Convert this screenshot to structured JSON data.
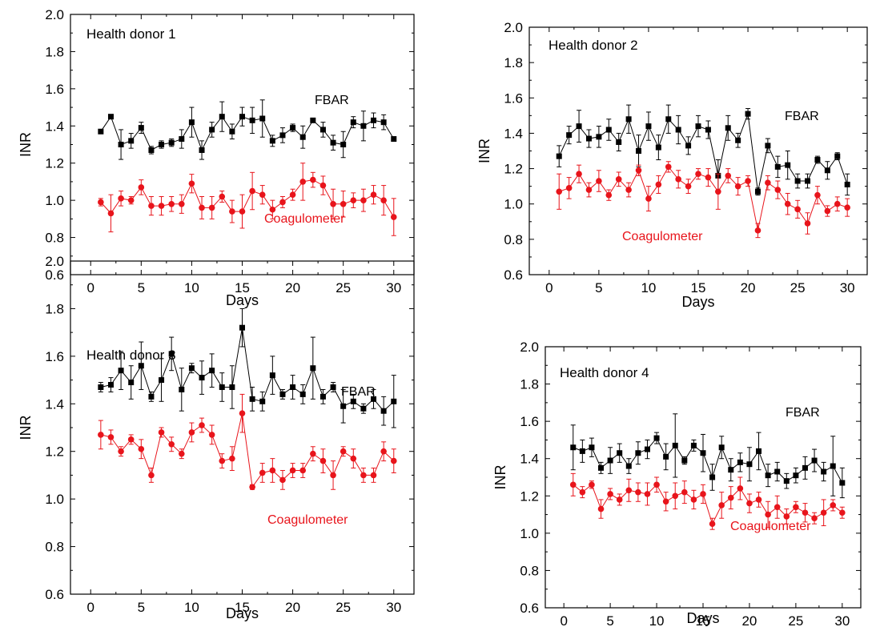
{
  "chart_data": [
    {
      "type": "line",
      "title": "Health donor 1",
      "xlabel": "Days",
      "ylabel": "INR",
      "xlim": [
        -2,
        32
      ],
      "ylim": [
        0.6,
        2.0
      ],
      "xticks": [
        "0",
        "5",
        "10",
        "15",
        "20",
        "25",
        "30"
      ],
      "yticks": [
        "0.6",
        "0.8",
        "1.0",
        "1.2",
        "1.4",
        "1.6",
        "1.8",
        "2.0"
      ],
      "x": [
        1,
        2,
        3,
        4,
        5,
        6,
        7,
        8,
        9,
        10,
        11,
        12,
        13,
        14,
        15,
        16,
        17,
        18,
        19,
        20,
        21,
        22,
        23,
        24,
        25,
        26,
        27,
        28,
        29,
        30
      ],
      "series": [
        {
          "name": "FBAR",
          "color": "#000000",
          "marker": "square",
          "values": [
            1.37,
            1.45,
            1.3,
            1.32,
            1.39,
            1.27,
            1.3,
            1.31,
            1.33,
            1.42,
            1.27,
            1.38,
            1.45,
            1.37,
            1.45,
            1.43,
            1.44,
            1.32,
            1.35,
            1.39,
            1.34,
            1.43,
            1.38,
            1.31,
            1.3,
            1.42,
            1.4,
            1.43,
            1.42,
            1.33
          ],
          "errors": [
            0.01,
            0.01,
            0.08,
            0.04,
            0.03,
            0.02,
            0.02,
            0.02,
            0.05,
            0.08,
            0.05,
            0.04,
            0.08,
            0.04,
            0.05,
            0.07,
            0.1,
            0.03,
            0.04,
            0.02,
            0.06,
            0.01,
            0.04,
            0.04,
            0.07,
            0.03,
            0.08,
            0.04,
            0.04,
            0.01
          ]
        },
        {
          "name": "Coagulometer",
          "color": "#e8141b",
          "marker": "circle",
          "values": [
            0.99,
            0.93,
            1.01,
            1.0,
            1.07,
            0.97,
            0.97,
            0.98,
            0.98,
            1.09,
            0.96,
            0.96,
            1.02,
            0.94,
            0.94,
            1.05,
            1.03,
            0.95,
            0.99,
            1.03,
            1.1,
            1.11,
            1.08,
            0.98,
            0.98,
            1.0,
            1.0,
            1.03,
            1.0,
            0.91
          ],
          "errors": [
            0.02,
            0.1,
            0.04,
            0.02,
            0.04,
            0.05,
            0.05,
            0.04,
            0.05,
            0.05,
            0.06,
            0.06,
            0.03,
            0.06,
            0.09,
            0.1,
            0.05,
            0.05,
            0.03,
            0.03,
            0.1,
            0.04,
            0.05,
            0.08,
            0.07,
            0.04,
            0.06,
            0.05,
            0.08,
            0.1
          ]
        }
      ]
    },
    {
      "type": "line",
      "title": "Health donor 2",
      "xlabel": "Days",
      "ylabel": "INR",
      "xlim": [
        -2,
        32
      ],
      "ylim": [
        0.6,
        2.0
      ],
      "xticks": [
        "0",
        "5",
        "10",
        "15",
        "20",
        "25",
        "30"
      ],
      "yticks": [
        "0.6",
        "0.8",
        "1.0",
        "1.2",
        "1.4",
        "1.6",
        "1.8",
        "2.0"
      ],
      "x": [
        1,
        2,
        3,
        4,
        5,
        6,
        7,
        8,
        9,
        10,
        11,
        12,
        13,
        14,
        15,
        16,
        17,
        18,
        19,
        20,
        21,
        22,
        23,
        24,
        25,
        26,
        27,
        28,
        29,
        30
      ],
      "series": [
        {
          "name": "FBAR",
          "color": "#000000",
          "marker": "square",
          "values": [
            1.27,
            1.39,
            1.44,
            1.37,
            1.38,
            1.42,
            1.35,
            1.48,
            1.3,
            1.44,
            1.32,
            1.48,
            1.42,
            1.33,
            1.44,
            1.42,
            1.16,
            1.43,
            1.36,
            1.51,
            1.07,
            1.33,
            1.21,
            1.22,
            1.13,
            1.13,
            1.25,
            1.19,
            1.27,
            1.11
          ],
          "errors": [
            0.06,
            0.05,
            0.09,
            0.05,
            0.06,
            0.06,
            0.05,
            0.08,
            0.09,
            0.08,
            0.07,
            0.08,
            0.08,
            0.05,
            0.06,
            0.05,
            0.09,
            0.07,
            0.04,
            0.03,
            0.02,
            0.04,
            0.06,
            0.08,
            0.04,
            0.04,
            0.02,
            0.05,
            0.02,
            0.06
          ]
        },
        {
          "name": "Coagulometer",
          "color": "#e8141b",
          "marker": "circle",
          "values": [
            1.07,
            1.09,
            1.17,
            1.08,
            1.13,
            1.05,
            1.14,
            1.08,
            1.19,
            1.03,
            1.11,
            1.21,
            1.14,
            1.1,
            1.17,
            1.15,
            1.07,
            1.16,
            1.1,
            1.13,
            0.85,
            1.12,
            1.08,
            1.0,
            0.97,
            0.89,
            1.05,
            0.96,
            1.0,
            0.98
          ],
          "errors": [
            0.1,
            0.06,
            0.05,
            0.04,
            0.06,
            0.03,
            0.04,
            0.04,
            0.03,
            0.07,
            0.05,
            0.03,
            0.05,
            0.04,
            0.03,
            0.05,
            0.1,
            0.04,
            0.05,
            0.03,
            0.04,
            0.04,
            0.05,
            0.06,
            0.05,
            0.06,
            0.05,
            0.03,
            0.04,
            0.05
          ]
        }
      ]
    },
    {
      "type": "line",
      "title": "Health donor 3",
      "xlabel": "Days",
      "ylabel": "INR",
      "xlim": [
        -2,
        32
      ],
      "ylim": [
        0.6,
        2.0
      ],
      "xticks": [
        "0",
        "5",
        "10",
        "15",
        "20",
        "25",
        "30"
      ],
      "yticks": [
        "0.6",
        "0.8",
        "1.0",
        "1.2",
        "1.4",
        "1.6",
        "1.8",
        "2.0"
      ],
      "x": [
        1,
        2,
        3,
        4,
        5,
        6,
        7,
        8,
        9,
        10,
        11,
        12,
        13,
        14,
        15,
        16,
        17,
        18,
        19,
        20,
        21,
        22,
        23,
        24,
        25,
        26,
        27,
        28,
        29,
        30
      ],
      "series": [
        {
          "name": "FBAR",
          "color": "#000000",
          "marker": "square",
          "values": [
            1.47,
            1.48,
            1.54,
            1.49,
            1.56,
            1.43,
            1.5,
            1.61,
            1.46,
            1.55,
            1.51,
            1.54,
            1.47,
            1.47,
            1.72,
            1.42,
            1.41,
            1.52,
            1.44,
            1.47,
            1.44,
            1.55,
            1.43,
            1.47,
            1.39,
            1.41,
            1.38,
            1.42,
            1.37,
            1.41
          ],
          "errors": [
            0.02,
            0.03,
            0.08,
            0.07,
            0.1,
            0.02,
            0.09,
            0.07,
            0.09,
            0.02,
            0.07,
            0.07,
            0.06,
            0.09,
            0.08,
            0.05,
            0.04,
            0.08,
            0.02,
            0.05,
            0.04,
            0.13,
            0.03,
            0.02,
            0.07,
            0.03,
            0.02,
            0.04,
            0.06,
            0.11
          ]
        },
        {
          "name": "Coagulometer",
          "color": "#e8141b",
          "marker": "circle",
          "values": [
            1.27,
            1.26,
            1.2,
            1.25,
            1.21,
            1.1,
            1.28,
            1.23,
            1.19,
            1.28,
            1.31,
            1.27,
            1.16,
            1.17,
            1.36,
            1.05,
            1.11,
            1.12,
            1.08,
            1.12,
            1.12,
            1.19,
            1.16,
            1.1,
            1.2,
            1.17,
            1.1,
            1.1,
            1.2,
            1.16
          ],
          "errors": [
            0.06,
            0.03,
            0.02,
            0.02,
            0.04,
            0.03,
            0.02,
            0.03,
            0.02,
            0.04,
            0.03,
            0.04,
            0.03,
            0.05,
            0.08,
            0.01,
            0.04,
            0.05,
            0.04,
            0.03,
            0.03,
            0.03,
            0.05,
            0.06,
            0.02,
            0.04,
            0.03,
            0.03,
            0.04,
            0.05
          ]
        }
      ]
    },
    {
      "type": "line",
      "title": "Health donor 4",
      "xlabel": "Days",
      "ylabel": "INR",
      "xlim": [
        -2,
        32
      ],
      "ylim": [
        0.6,
        2.0
      ],
      "xticks": [
        "0",
        "5",
        "10",
        "15",
        "20",
        "25",
        "30"
      ],
      "yticks": [
        "0.6",
        "0.8",
        "1.0",
        "1.2",
        "1.4",
        "1.6",
        "1.8",
        "2.0"
      ],
      "x": [
        1,
        2,
        3,
        4,
        5,
        6,
        7,
        8,
        9,
        10,
        11,
        12,
        13,
        14,
        15,
        16,
        17,
        18,
        19,
        20,
        21,
        22,
        23,
        24,
        25,
        26,
        27,
        28,
        29,
        30
      ],
      "series": [
        {
          "name": "FBAR",
          "color": "#000000",
          "marker": "square",
          "values": [
            1.46,
            1.44,
            1.46,
            1.35,
            1.39,
            1.43,
            1.36,
            1.43,
            1.45,
            1.51,
            1.41,
            1.47,
            1.39,
            1.47,
            1.43,
            1.3,
            1.46,
            1.34,
            1.38,
            1.37,
            1.44,
            1.31,
            1.33,
            1.28,
            1.31,
            1.35,
            1.39,
            1.33,
            1.36,
            1.27
          ],
          "errors": [
            0.12,
            0.06,
            0.05,
            0.03,
            0.07,
            0.05,
            0.04,
            0.06,
            0.05,
            0.03,
            0.07,
            0.17,
            0.02,
            0.03,
            0.1,
            0.07,
            0.06,
            0.06,
            0.05,
            0.09,
            0.1,
            0.06,
            0.05,
            0.04,
            0.04,
            0.06,
            0.06,
            0.05,
            0.16,
            0.08
          ]
        },
        {
          "name": "Coagulometer",
          "color": "#e8141b",
          "marker": "circle",
          "values": [
            1.26,
            1.22,
            1.26,
            1.13,
            1.21,
            1.18,
            1.23,
            1.22,
            1.21,
            1.26,
            1.17,
            1.2,
            1.22,
            1.18,
            1.21,
            1.05,
            1.15,
            1.19,
            1.24,
            1.16,
            1.18,
            1.1,
            1.14,
            1.09,
            1.14,
            1.11,
            1.08,
            1.11,
            1.15,
            1.11
          ],
          "errors": [
            0.06,
            0.03,
            0.02,
            0.05,
            0.03,
            0.03,
            0.06,
            0.05,
            0.06,
            0.04,
            0.05,
            0.07,
            0.06,
            0.05,
            0.05,
            0.03,
            0.07,
            0.06,
            0.06,
            0.05,
            0.04,
            0.07,
            0.06,
            0.04,
            0.03,
            0.05,
            0.03,
            0.07,
            0.03,
            0.03
          ]
        }
      ]
    }
  ]
}
